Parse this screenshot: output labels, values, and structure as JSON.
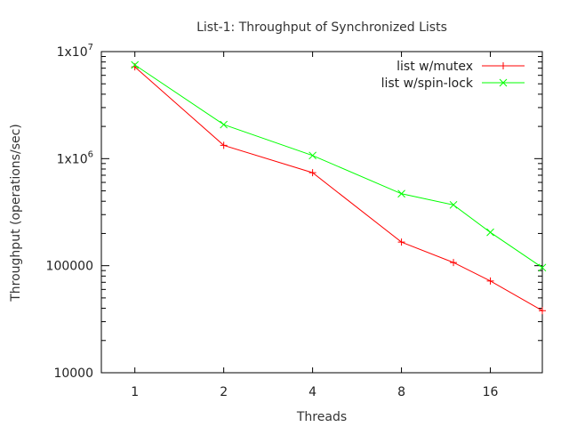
{
  "chart_data": {
    "type": "line",
    "title": "List-1: Throughput of Synchronized Lists",
    "xlabel": "Threads",
    "ylabel": "Throughput (operations/sec)",
    "x_scale": "log2",
    "y_scale": "log10",
    "xlim": [
      0.77,
      24
    ],
    "ylim": [
      10000,
      10000000
    ],
    "x_ticks": [
      {
        "value": 1,
        "label": "1"
      },
      {
        "value": 2,
        "label": "2"
      },
      {
        "value": 4,
        "label": "4"
      },
      {
        "value": 8,
        "label": "8"
      },
      {
        "value": 16,
        "label": "16"
      }
    ],
    "y_ticks": [
      {
        "value": 10000,
        "base": "10000",
        "exp": ""
      },
      {
        "value": 100000,
        "base": "100000",
        "exp": ""
      },
      {
        "value": 1000000,
        "base": "1x10",
        "exp": "6"
      },
      {
        "value": 10000000,
        "base": "1x10",
        "exp": "7"
      }
    ],
    "grid": false,
    "legend_position": "top-right",
    "series": [
      {
        "name": "list w/mutex",
        "color": "#ff0000",
        "marker": "plus",
        "points": [
          {
            "x": 1,
            "y": 7200000
          },
          {
            "x": 2,
            "y": 1330000
          },
          {
            "x": 4,
            "y": 740000
          },
          {
            "x": 8,
            "y": 166000
          },
          {
            "x": 12,
            "y": 107000
          },
          {
            "x": 16,
            "y": 72000
          },
          {
            "x": 24,
            "y": 38000
          }
        ]
      },
      {
        "name": "list w/spin-lock",
        "color": "#00ff00",
        "marker": "cross",
        "points": [
          {
            "x": 1,
            "y": 7500000
          },
          {
            "x": 2,
            "y": 2080000
          },
          {
            "x": 4,
            "y": 1070000
          },
          {
            "x": 8,
            "y": 470000
          },
          {
            "x": 12,
            "y": 370000
          },
          {
            "x": 16,
            "y": 205000
          },
          {
            "x": 24,
            "y": 96000
          }
        ]
      }
    ]
  }
}
